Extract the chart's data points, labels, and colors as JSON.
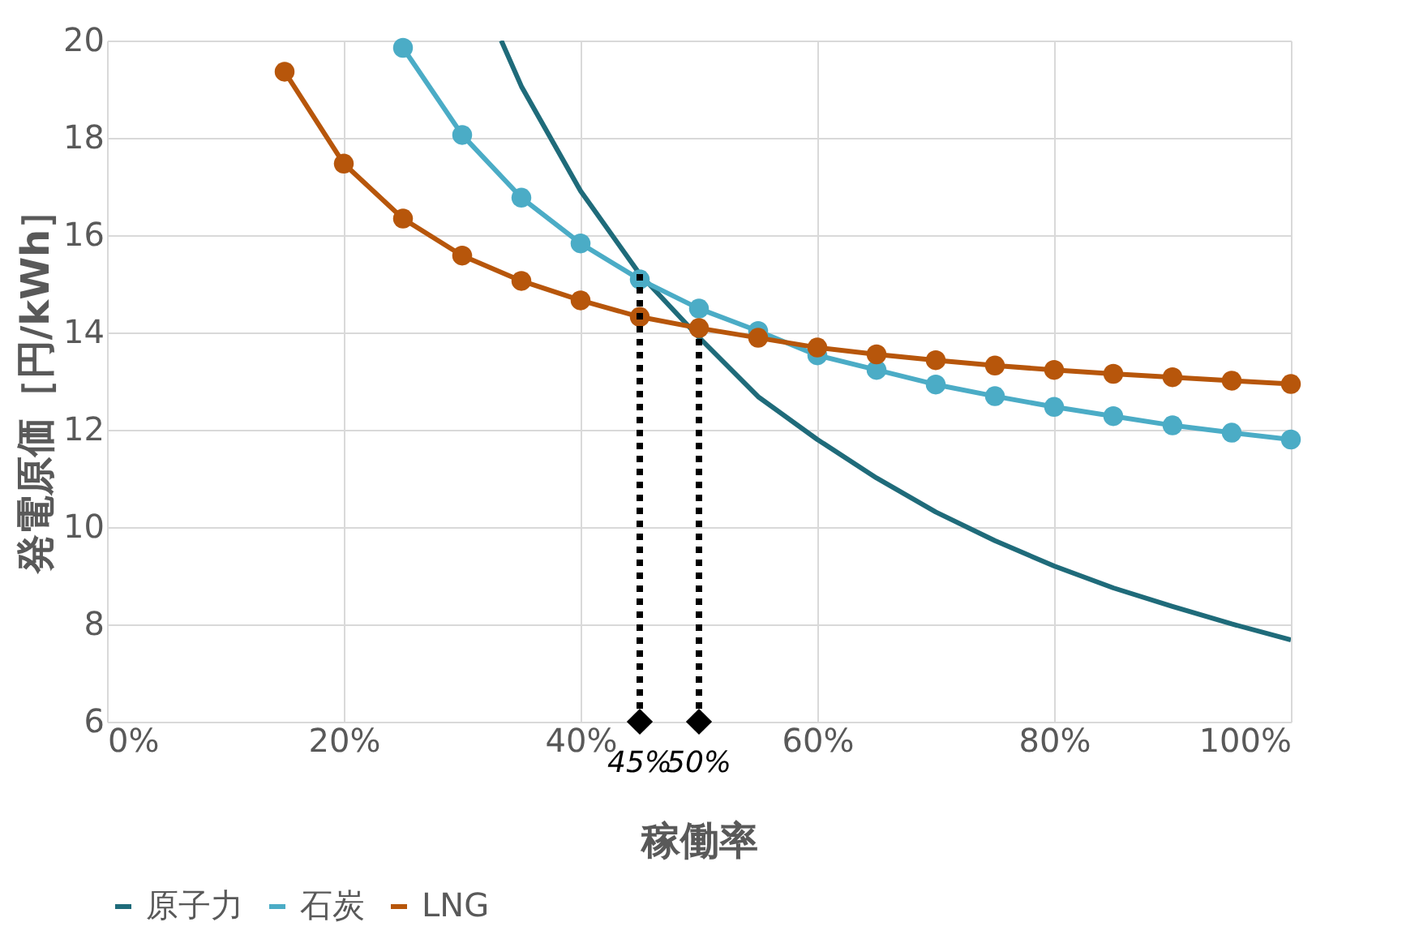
{
  "chart_data": {
    "type": "line",
    "xlabel": "稼働率",
    "ylabel": "発電原価［円/kWh］",
    "xlim": [
      0,
      100
    ],
    "xticks": [
      {
        "value": 0,
        "label": "0%"
      },
      {
        "value": 20,
        "label": "20%"
      },
      {
        "value": 40,
        "label": "40%"
      },
      {
        "value": 60,
        "label": "60%"
      },
      {
        "value": 80,
        "label": "80%"
      },
      {
        "value": 100,
        "label": "100%"
      }
    ],
    "ylim": [
      6,
      20
    ],
    "yticks": [
      6,
      8,
      10,
      12,
      14,
      16,
      18,
      20
    ],
    "grid": true,
    "legend": "bottom",
    "line_style": "solid",
    "series": [
      {
        "name": "原子力",
        "color": "#1f6b7a",
        "marker": "none",
        "x": [
          33.3,
          35,
          40,
          45,
          50,
          55,
          60,
          65,
          70,
          75,
          80,
          85,
          90,
          95,
          100
        ],
        "values": [
          20.0,
          19.06,
          16.91,
          15.2,
          13.9,
          12.68,
          11.8,
          11.01,
          10.31,
          9.72,
          9.2,
          8.75,
          8.37,
          8.01,
          7.68
        ]
      },
      {
        "name": "石炭",
        "color": "#4bacc6",
        "marker": "circle",
        "x": [
          25,
          30,
          35,
          40,
          45,
          50,
          55,
          60,
          65,
          70,
          75,
          80,
          85,
          90,
          95,
          100
        ],
        "values": [
          19.85,
          18.06,
          16.77,
          15.83,
          15.09,
          14.49,
          14.03,
          13.53,
          13.23,
          12.93,
          12.69,
          12.47,
          12.28,
          12.09,
          11.94,
          11.8
        ]
      },
      {
        "name": "LNG",
        "color": "#b7560b",
        "marker": "circle",
        "x": [
          15,
          20,
          25,
          30,
          35,
          40,
          45,
          50,
          55,
          60,
          65,
          70,
          75,
          80,
          85,
          90,
          95,
          100
        ],
        "values": [
          19.36,
          17.47,
          16.34,
          15.58,
          15.06,
          14.66,
          14.32,
          14.09,
          13.89,
          13.69,
          13.55,
          13.43,
          13.32,
          13.23,
          13.15,
          13.08,
          13.01,
          12.94
        ]
      }
    ],
    "annotations": [
      {
        "text": "45%",
        "x": 45,
        "y": 6
      },
      {
        "text": "50%",
        "x": 50,
        "y": 6
      }
    ]
  }
}
